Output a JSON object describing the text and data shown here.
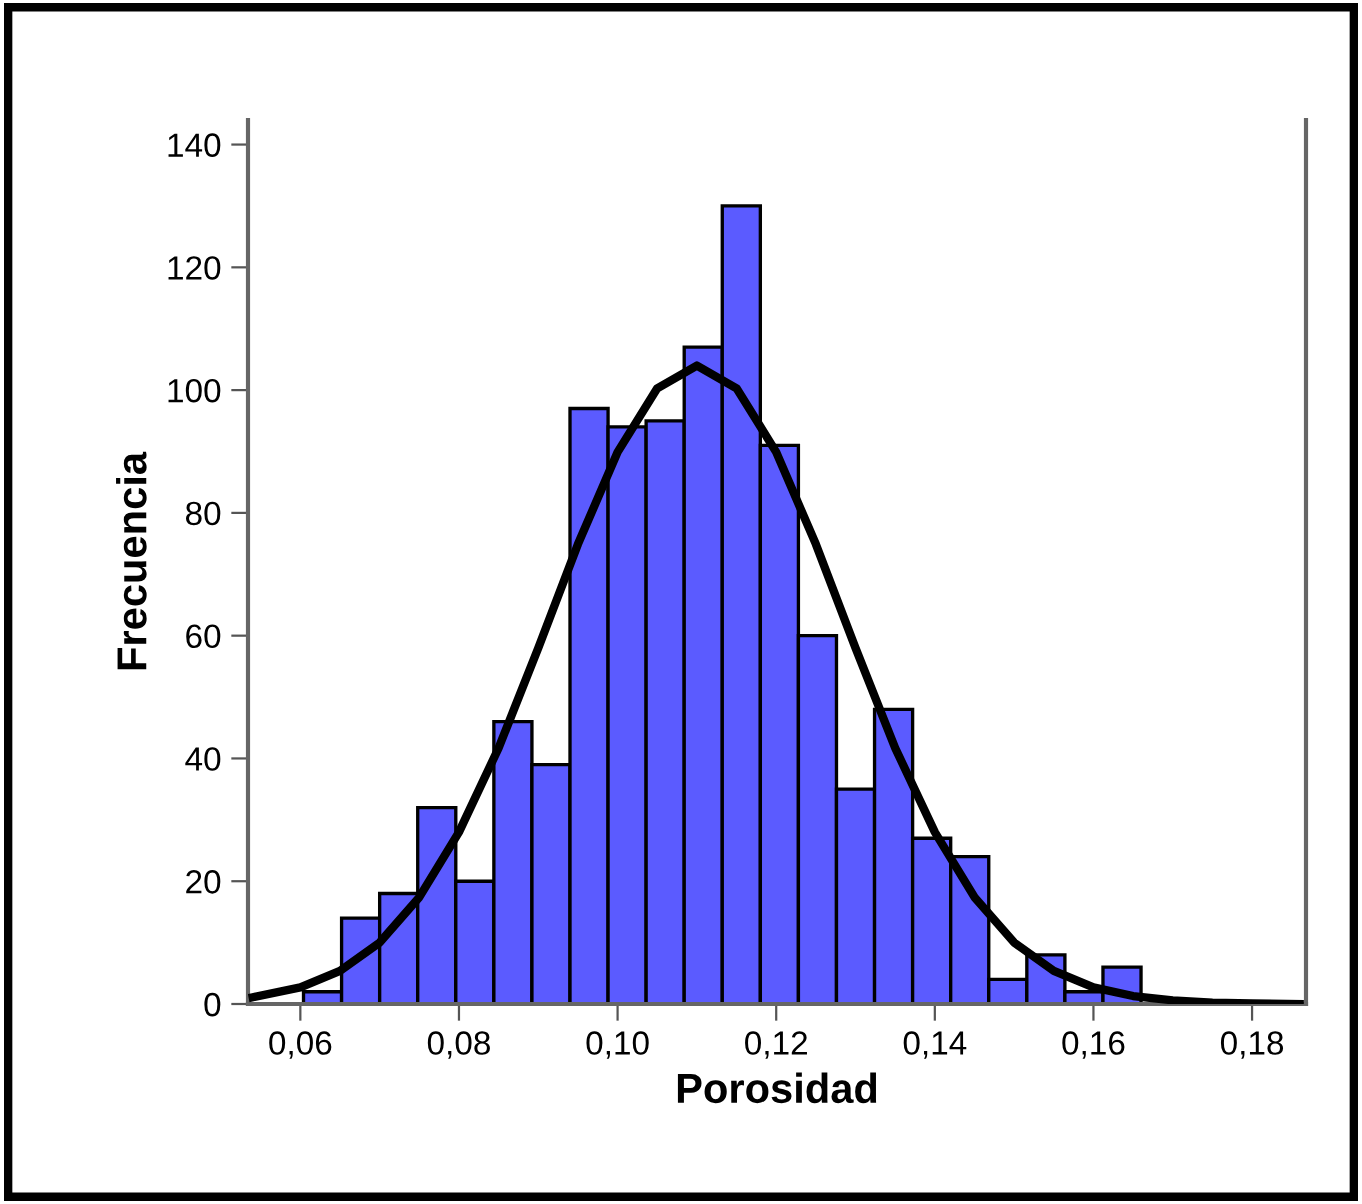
{
  "chart_data": {
    "type": "histogram",
    "xlabel": "Porosidad",
    "ylabel": "Frecuencia",
    "bins": [
      0.0604,
      0.0652,
      0.07,
      0.0748,
      0.0796,
      0.0844,
      0.0892,
      0.094,
      0.0988,
      0.1036,
      0.1084,
      0.1132,
      0.118,
      0.1228,
      0.1276,
      0.1324,
      0.1372,
      0.142,
      0.1468,
      0.1516,
      0.1564,
      0.1612,
      0.166
    ],
    "values": [
      2,
      14,
      18,
      32,
      20,
      46,
      39,
      97,
      94,
      95,
      107,
      130,
      91,
      60,
      35,
      48,
      27,
      24,
      4,
      8,
      2,
      6
    ],
    "color": "#5b5bff",
    "series": [
      {
        "type": "line",
        "color": "#000000",
        "x": [
          0.054,
          0.06,
          0.065,
          0.07,
          0.075,
          0.08,
          0.085,
          0.09,
          0.095,
          0.1,
          0.105,
          0.11,
          0.115,
          0.12,
          0.125,
          0.13,
          0.135,
          0.14,
          0.145,
          0.15,
          0.155,
          0.16,
          0.165,
          0.17,
          0.175,
          0.18,
          0.186
        ],
        "values": [
          1.1,
          2.7,
          5.4,
          10,
          17.4,
          28,
          41.7,
          58,
          74.9,
          89.9,
          100.3,
          104,
          100.3,
          89.9,
          74.9,
          58,
          41.7,
          28,
          17.4,
          10,
          5.4,
          2.7,
          1.3,
          0.6,
          0.2,
          0.1,
          0
        ]
      }
    ],
    "xlim": [
      0.0534,
      0.1868
    ],
    "ylim": [
      0,
      144
    ],
    "xticks": [
      {
        "value": 0.06,
        "label": "0,06"
      },
      {
        "value": 0.08,
        "label": "0,08"
      },
      {
        "value": 0.1,
        "label": "0,10"
      },
      {
        "value": 0.12,
        "label": "0,12"
      },
      {
        "value": 0.14,
        "label": "0,14"
      },
      {
        "value": 0.16,
        "label": "0,16"
      },
      {
        "value": 0.18,
        "label": "0,18"
      }
    ],
    "yticks": [
      0,
      20,
      40,
      60,
      80,
      100,
      120,
      140
    ],
    "grid": false,
    "legend": false
  }
}
